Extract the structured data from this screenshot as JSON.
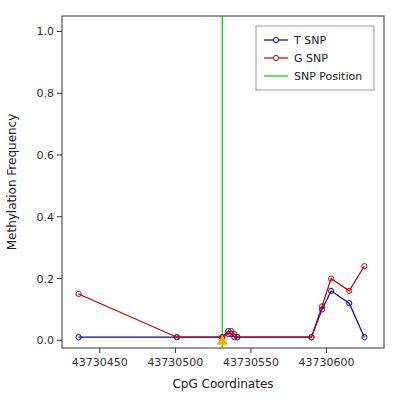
{
  "chart_data": {
    "type": "line",
    "xlabel": "CpG Coordinates",
    "ylabel": "Methylation Frequency",
    "x": [
      43730436,
      43730501,
      43730531,
      43730535,
      43730537,
      43730539,
      43730541,
      43730590,
      43730597,
      43730603,
      43730615,
      43730625
    ],
    "series": [
      {
        "name": "T SNP",
        "color": "#0000bb",
        "marker": "circle",
        "values": [
          0.01,
          0.01,
          0.01,
          0.03,
          0.02,
          0.01,
          0.01,
          0.01,
          0.1,
          0.16,
          0.12,
          0.01
        ]
      },
      {
        "name": "G SNP",
        "color": "#cc0000",
        "marker": "circle",
        "values": [
          0.15,
          0.01,
          0.01,
          0.02,
          0.03,
          0.02,
          0.01,
          0.01,
          0.11,
          0.2,
          0.16,
          0.24
        ]
      }
    ],
    "vline": {
      "name": "SNP Position",
      "x": 43730531,
      "color": "#00cc00"
    },
    "point": {
      "x": 43730531,
      "y": 0.0,
      "color": "#ffaa00",
      "marker": "triangle"
    },
    "xlim": [
      43730425,
      43730638
    ],
    "ylim": [
      -0.025,
      1.05
    ],
    "xticks": [
      43730450,
      43730500,
      43730550,
      43730600
    ],
    "yticks": [
      {
        "value": 0.0,
        "label": "0.0"
      },
      0.2,
      0.4,
      0.6,
      0.8,
      {
        "value": 1.0,
        "label": "1.0"
      }
    ],
    "legend": "upper right"
  }
}
